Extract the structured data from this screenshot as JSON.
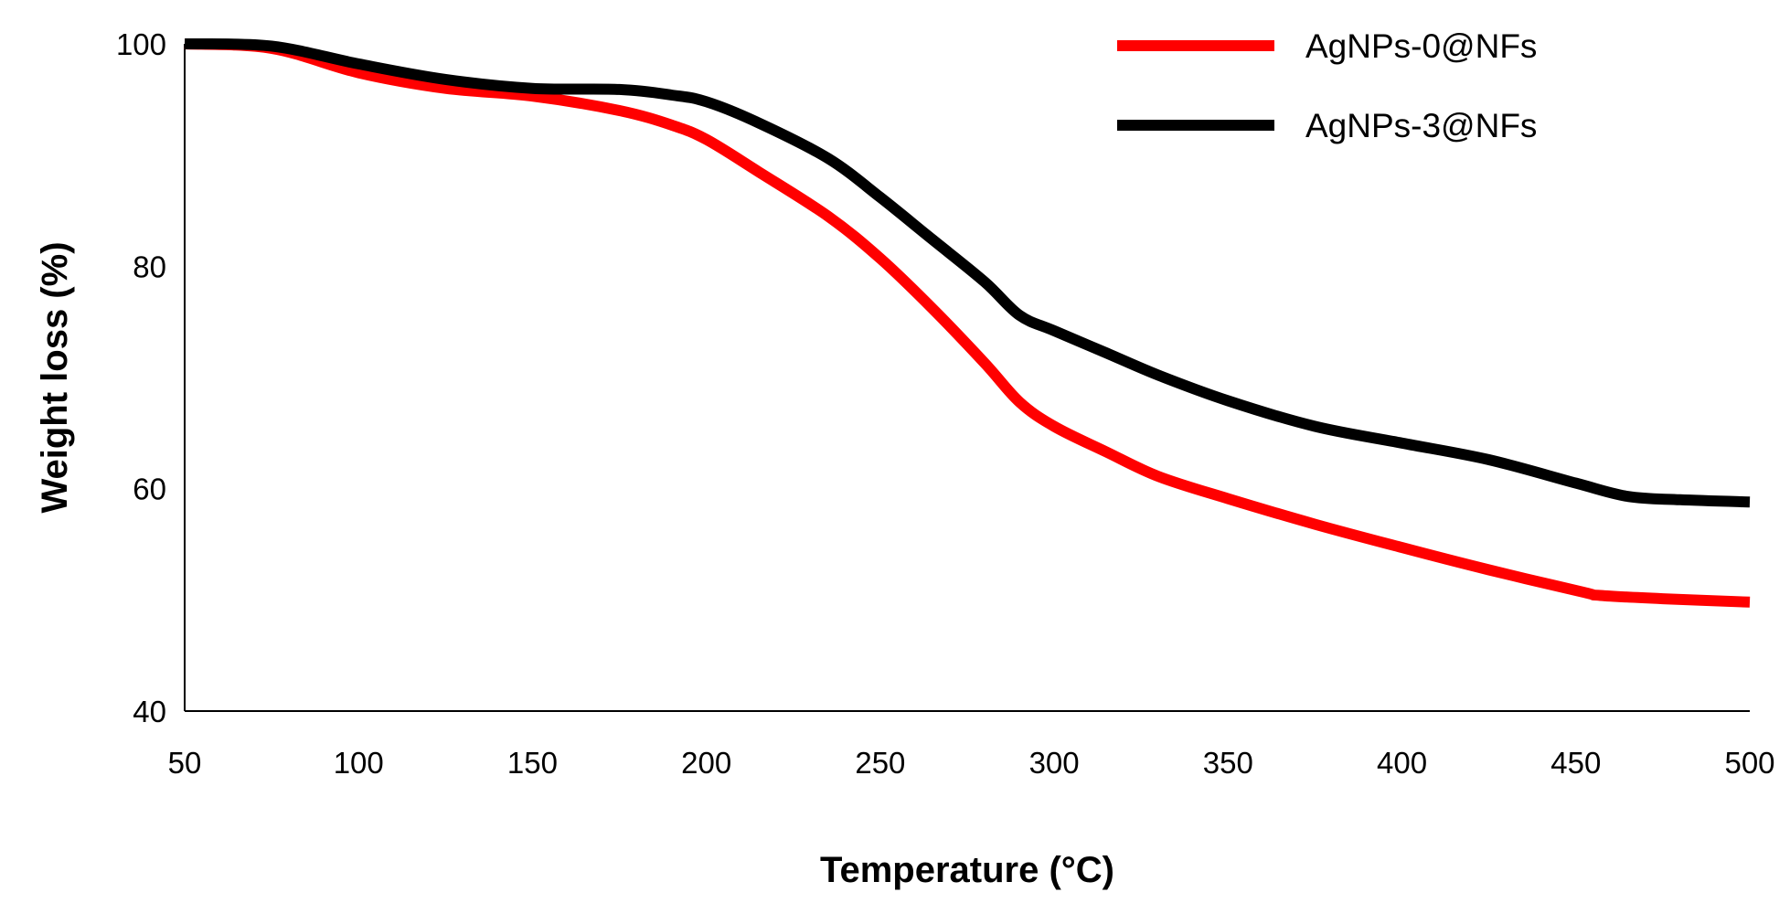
{
  "chart_data": {
    "type": "line",
    "title": "",
    "xlabel": "Temperature (°C)",
    "ylabel": "Weight loss (%)",
    "xlim": [
      50,
      500
    ],
    "ylim": [
      40,
      100
    ],
    "x_ticks": [
      "50",
      "100",
      "150",
      "200",
      "250",
      "300",
      "350",
      "400",
      "450",
      "500"
    ],
    "y_ticks": [
      "40",
      "60",
      "80",
      "100"
    ],
    "grid": false,
    "legend_position": "top-right",
    "series": [
      {
        "name": "AgNPs-0@NFs",
        "color": "#ff0000",
        "x": [
          50,
          75,
          100,
          125,
          150,
          175,
          190,
          200,
          215,
          235,
          250,
          265,
          280,
          290,
          300,
          315,
          330,
          350,
          375,
          400,
          425,
          452,
          457,
          475,
          500
        ],
        "y": [
          100,
          99.6,
          97.4,
          96,
          95.3,
          94,
          92.7,
          91.4,
          88.5,
          84.5,
          80.7,
          76.2,
          71.3,
          67.8,
          65.6,
          63.3,
          61.1,
          59.1,
          56.8,
          54.7,
          52.7,
          50.7,
          50.4,
          50.1,
          49.8
        ]
      },
      {
        "name": "AgNPs-3@NFs",
        "color": "#000000",
        "x": [
          50,
          75,
          100,
          125,
          150,
          175,
          190,
          200,
          215,
          235,
          250,
          265,
          280,
          290,
          300,
          315,
          330,
          350,
          375,
          400,
          425,
          450,
          465,
          480,
          500
        ],
        "y": [
          100,
          99.8,
          98.2,
          96.8,
          96,
          95.9,
          95.4,
          94.8,
          92.9,
          89.7,
          86.2,
          82.4,
          78.6,
          75.6,
          74.2,
          72.2,
          70.2,
          67.9,
          65.6,
          64.1,
          62.6,
          60.5,
          59.3,
          59,
          58.8
        ]
      }
    ]
  }
}
